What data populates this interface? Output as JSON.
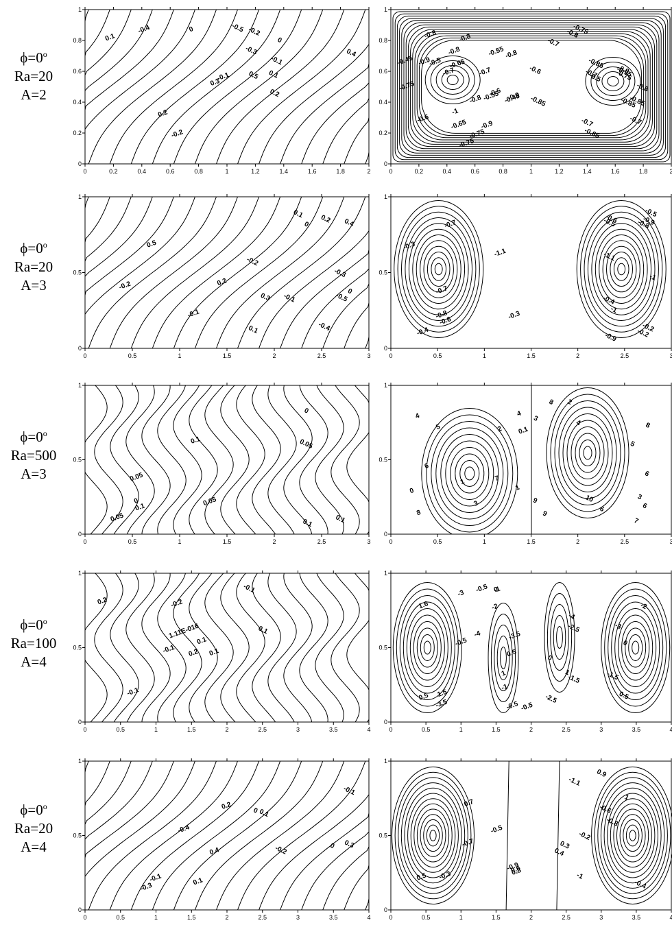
{
  "rows": [
    {
      "label": {
        "phi": "ϕ=0",
        "phi_sup": "o",
        "ra": "Ra=20",
        "a": "A=2"
      },
      "xticks": [
        "0",
        "0.2",
        "0.4",
        "0.6",
        "0.8",
        "1",
        "1.2",
        "1.4",
        "1.6",
        "1.8",
        "2"
      ],
      "yticks": [
        "0",
        "0.2",
        "0.4",
        "0.6",
        "0.8",
        "1"
      ],
      "left_labels": [
        "0.2",
        "0.1",
        "0",
        "-0.1",
        "-0.2",
        "-0.3",
        "-0.4",
        "-0.5",
        "0.3",
        "0.4",
        "0.5",
        "0",
        "0.1",
        "-0.1",
        "-0.2",
        "0.2"
      ],
      "right_labels": [
        "-0.8",
        "-0.65",
        "-0.45",
        "-0.5",
        "-0.55",
        "-0.7",
        "-0.6",
        "-0.8",
        "-0.75",
        "-0.9",
        "-0.85",
        "-0.8",
        "-0.7",
        "-0.75",
        "-0.85",
        "-0.95",
        "-0.9",
        "-0.7",
        "-1",
        "-0.9",
        "-0.85",
        "-0.9",
        "-0.8",
        "-0.7",
        "-0.75",
        "-0.75",
        "-0.8",
        "-0.85",
        "-0.55",
        "-0.65",
        "-0.7",
        "-0.85",
        "-0.6",
        "-0.5",
        "-0.45",
        "-0.7",
        "-0.75",
        "-0.8",
        "-0.6",
        "-0.8"
      ]
    },
    {
      "label": {
        "phi": "ϕ=0",
        "phi_sup": "o",
        "ra": "Ra=20",
        "a": "A=3"
      },
      "xticks": [
        "0",
        "0.5",
        "1",
        "1.5",
        "2",
        "2.5",
        "3"
      ],
      "yticks": [
        "0",
        "0.5",
        "1"
      ],
      "left_labels": [
        "0.3",
        "0.2",
        "0.1",
        "0",
        "-0.1",
        "-0.2",
        "0.4",
        "-0.3",
        "-0.4",
        "-0.5",
        "0.5",
        "-0.1",
        "-0.2",
        "0",
        "0.1",
        "0.2"
      ],
      "right_labels": [
        "-0.2",
        "-0.3",
        "-0.4",
        "-0.5",
        "-0.6",
        "-0.7",
        "-0.8",
        "-0.9",
        "-1.1",
        "-1.1",
        "-1",
        "-0.9",
        "-0.8",
        "-0.7",
        "-0.6",
        "-0.5",
        "-0.4",
        "-0.3",
        "-0.2",
        "-1"
      ]
    },
    {
      "label": {
        "phi": "ϕ=0",
        "phi_sup": "o",
        "ra": "Ra=500",
        "a": "A=3"
      },
      "xticks": [
        "0",
        "0.5",
        "1",
        "1.5",
        "2",
        "2.5",
        "3"
      ],
      "yticks": [
        "0",
        "0.5",
        "1"
      ],
      "left_labels": [
        "0.1",
        "0.05",
        "0.05",
        "0",
        "0.1",
        "0.05",
        "0",
        "0.1",
        "0.05",
        "0.1"
      ],
      "right_labels": [
        "2",
        "1",
        "3",
        "6",
        "6",
        "8",
        "9",
        "7",
        "5",
        "3",
        "1",
        "0",
        "0.1",
        "10",
        "4",
        "5",
        "4",
        "8",
        "9",
        "2",
        "4",
        "8",
        "7",
        "6",
        "6",
        "3"
      ]
    },
    {
      "label": {
        "phi": "ϕ=0",
        "phi_sup": "o",
        "ra": "Ra=100",
        "a": "A=4"
      },
      "xticks": [
        "0",
        "0.5",
        "1",
        "1.5",
        "2",
        "2.5",
        "3",
        "3.5",
        "4"
      ],
      "yticks": [
        "0",
        "0.5",
        "1"
      ],
      "left_labels": [
        "0.2",
        "0.1",
        "-0.1",
        "1.11E-016",
        "-0.1",
        "0.1",
        "0.2",
        "0.1",
        "-0.1",
        "-0.2"
      ],
      "right_labels": [
        "-2.5",
        "-1.5",
        "0.5",
        "-0.5",
        "1.5",
        "0",
        "-1.5",
        "-3",
        "-3.5",
        "-4",
        "-1",
        "0",
        "1.6",
        "0",
        "1",
        "-4",
        "-0.5",
        "0.5",
        "-1",
        "-3.5",
        "-3",
        "-2",
        "-0.5",
        "0.5",
        "1",
        "-2",
        "-2.5",
        "-0.5"
      ]
    },
    {
      "label": {
        "phi": "ϕ=0",
        "phi_sup": "o",
        "ra": "Ra=20",
        "a": "A=4"
      },
      "xticks": [
        "0",
        "0.5",
        "1",
        "1.5",
        "2",
        "2.5",
        "3",
        "3.5",
        "4"
      ],
      "yticks": [
        "0",
        "0.5",
        "1"
      ],
      "left_labels": [
        "0.3",
        "0.2",
        "0.1",
        "0",
        "-0.1",
        "0.4",
        "-0.1",
        "0",
        "0.1",
        "-0.2",
        "-0.3",
        "-0.4"
      ],
      "right_labels": [
        "-1.1",
        "-1",
        "-0.9",
        "-0.8",
        "-0.7",
        "-0.6",
        "-0.5",
        "-0.4",
        "-0.3",
        "-0.2",
        "0.3",
        "0.4",
        "0.5",
        "0.6",
        "0.7",
        "0.8",
        "0.9",
        "1"
      ]
    }
  ]
}
